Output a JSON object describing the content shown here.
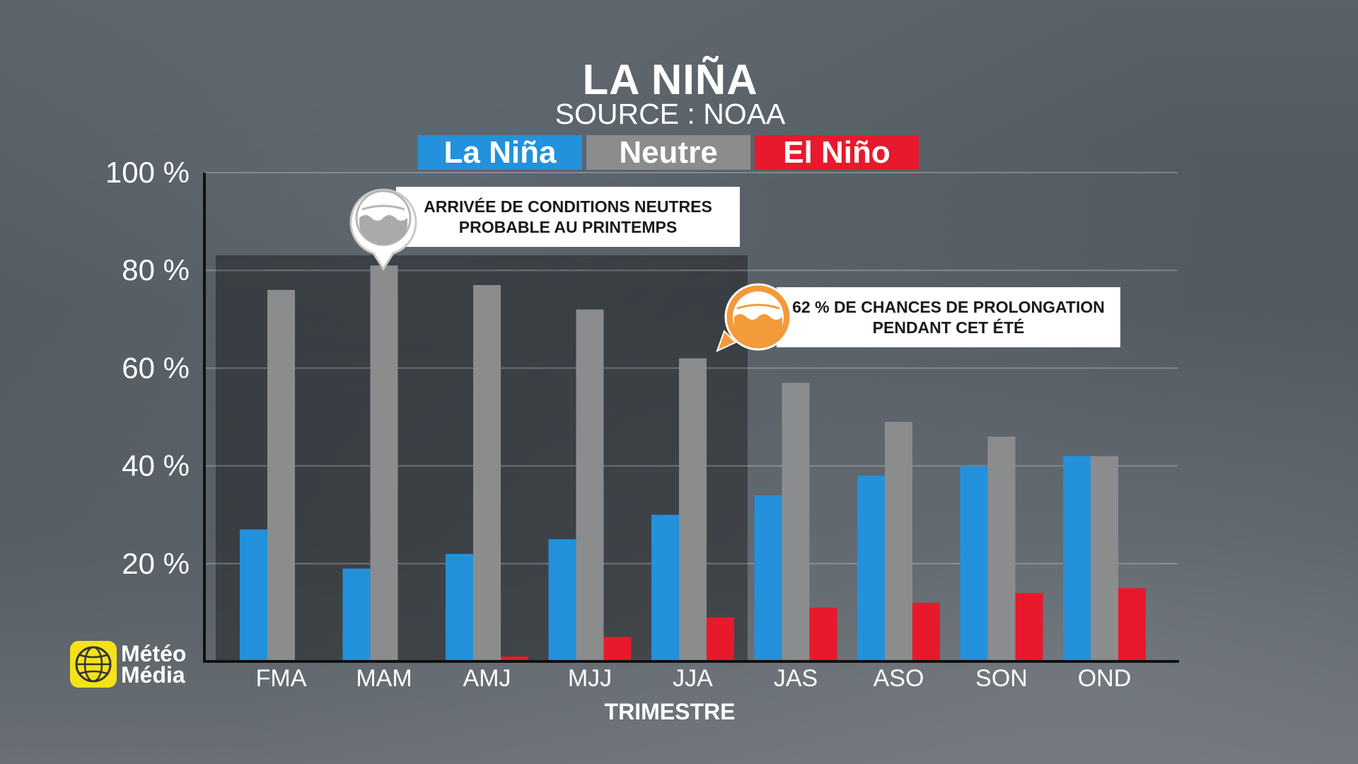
{
  "header": {
    "title": "LA NIÑA",
    "subtitle": "SOURCE : NOAA"
  },
  "colors": {
    "la_nina": "#2391db",
    "neutre": "#8a8c8e",
    "el_nino": "#e8192c"
  },
  "callouts": {
    "neutral": {
      "line1": "ARRIVÉE DE CONDITIONS NEUTRES",
      "line2": "PROBABLE AU PRINTEMPS",
      "icon": "ocean-wave-icon"
    },
    "summer": {
      "line1": "62 % DE CHANCES DE PROLONGATION",
      "line2": "PENDANT CET ÉTÉ",
      "icon": "ocean-wave-icon"
    }
  },
  "logo": {
    "line1": "Météo",
    "line2": "Média"
  },
  "chart_data": {
    "type": "bar",
    "xlabel": "TRIMESTRE",
    "ylabel": "",
    "ylim": [
      0,
      100
    ],
    "yticks": [
      "100 %",
      "80 %",
      "60 %",
      "40 %",
      "20 %"
    ],
    "ytick_values": [
      100,
      80,
      60,
      40,
      20
    ],
    "categories": [
      "FMA",
      "MAM",
      "AMJ",
      "MJJ",
      "JJA",
      "JAS",
      "ASO",
      "SON",
      "OND"
    ],
    "series": [
      {
        "name": "La Niña",
        "values": [
          27,
          19,
          22,
          25,
          30,
          34,
          38,
          40,
          42
        ]
      },
      {
        "name": "Neutre",
        "values": [
          76,
          81,
          77,
          72,
          62,
          57,
          49,
          46,
          42
        ]
      },
      {
        "name": "El Niño",
        "values": [
          0,
          0,
          1,
          5,
          9,
          11,
          12,
          14,
          15
        ]
      }
    ],
    "legend_placement": "top",
    "grid": true
  }
}
